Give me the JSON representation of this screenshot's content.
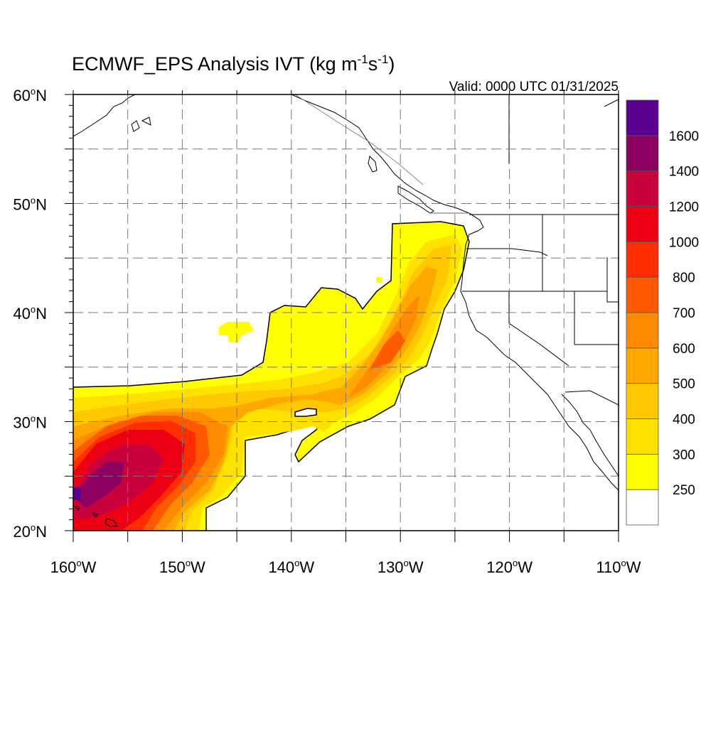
{
  "title": {
    "main": "ECMWF_EPS Analysis IVT (kg m",
    "sup1": "-1",
    "mid": "s",
    "sup2": "-1",
    "close": ")"
  },
  "valid": "Valid: 0000 UTC 01/31/2025",
  "lat_labels": [
    {
      "deg": "60",
      "hemi": "N",
      "lat": 60
    },
    {
      "deg": "50",
      "hemi": "N",
      "lat": 50
    },
    {
      "deg": "40",
      "hemi": "N",
      "lat": 40
    },
    {
      "deg": "30",
      "hemi": "N",
      "lat": 30
    },
    {
      "deg": "20",
      "hemi": "N",
      "lat": 20
    }
  ],
  "lon_labels": [
    {
      "deg": "160",
      "hemi": "W",
      "lon": -160
    },
    {
      "deg": "150",
      "hemi": "W",
      "lon": -150
    },
    {
      "deg": "140",
      "hemi": "W",
      "lon": -140
    },
    {
      "deg": "130",
      "hemi": "W",
      "lon": -130
    },
    {
      "deg": "120",
      "hemi": "W",
      "lon": -120
    },
    {
      "deg": "110",
      "hemi": "W",
      "lon": -110
    }
  ],
  "colorbar": {
    "colors": [
      "#ffffff",
      "#ffff00",
      "#ffe100",
      "#ffc800",
      "#ffa800",
      "#ff8c00",
      "#ff5a00",
      "#ff2d00",
      "#ee0014",
      "#c8003c",
      "#8c0060",
      "#5a0090"
    ],
    "labels": [
      "250",
      "300",
      "400",
      "500",
      "600",
      "700",
      "800",
      "1000",
      "1200",
      "1400",
      "1600"
    ]
  },
  "map_extent": {
    "lon_min": -160,
    "lon_max": -110,
    "lat_min": 20,
    "lat_max": 60
  }
}
